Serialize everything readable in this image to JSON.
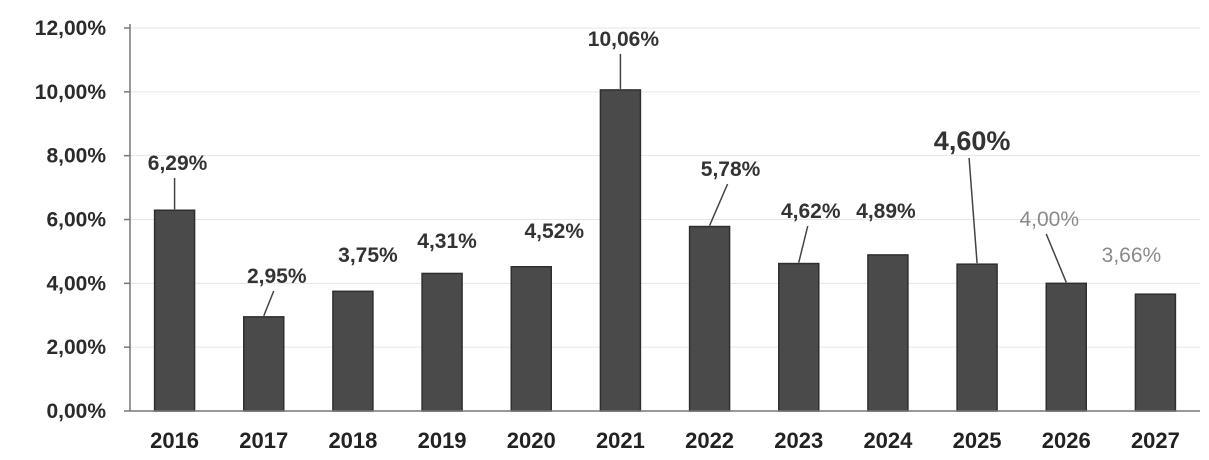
{
  "chart_data": {
    "type": "bar",
    "categories": [
      "2016",
      "2017",
      "2018",
      "2019",
      "2020",
      "2021",
      "2022",
      "2023",
      "2024",
      "2025",
      "2026",
      "2027"
    ],
    "values": [
      6.29,
      2.95,
      3.75,
      4.31,
      4.52,
      10.06,
      5.78,
      4.62,
      4.89,
      4.6,
      4.0,
      3.66
    ],
    "data_labels": [
      "6,29%",
      "2,95%",
      "3,75%",
      "4,31%",
      "4,52%",
      "10,06%",
      "5,78%",
      "4,62%",
      "4,89%",
      "4,60%",
      "4,00%",
      "3,66%"
    ],
    "y_ticks": [
      "0,00%",
      "2,00%",
      "4,00%",
      "6,00%",
      "8,00%",
      "10,00%",
      "12,00%"
    ],
    "ylim": [
      0,
      12
    ],
    "grid": true,
    "title": "",
    "xlabel": "",
    "ylabel": "",
    "colors": {
      "bar": "#4a4a4a",
      "bar_edge": "#2f2f2f"
    }
  }
}
